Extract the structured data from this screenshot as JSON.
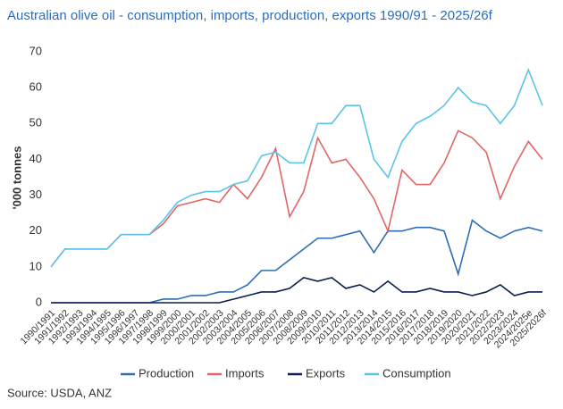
{
  "chart_data": {
    "type": "line",
    "title": "Australian olive oil - consumption, imports, production, exports 1990/91 - 2025/26f",
    "y_label": "'000 tonnes",
    "source": "Source: USDA, ANZ",
    "categories": [
      "1990/1991",
      "1991/1992",
      "1992/1993",
      "1993/1994",
      "1994/1995",
      "1995/1996",
      "1996/1997",
      "1997/1998",
      "1998/1999",
      "1999/2000",
      "2000/2001",
      "2001/2002",
      "2002/2003",
      "2003/2004",
      "2004/2005",
      "2005/2006",
      "2006/2007",
      "2007/2008",
      "2008/2009",
      "2009/2010",
      "2010/2011",
      "2011/2012",
      "2012/2013",
      "2013/2014",
      "2014/2015",
      "2015/2016",
      "2016/2017",
      "2017/2018",
      "2018/2019",
      "2019/2020",
      "2020/2021",
      "2021/2022",
      "2022/2023",
      "2023/2024",
      "2024/2025e",
      "2025/2026f"
    ],
    "series": [
      {
        "name": "Production",
        "color": "#2e6db4",
        "values": [
          0,
          0,
          0,
          0,
          0,
          0,
          0,
          0,
          1,
          1,
          2,
          2,
          3,
          3,
          5,
          9,
          9,
          12,
          15,
          18,
          18,
          19,
          20,
          14,
          20,
          20,
          21,
          21,
          20,
          8,
          23,
          20,
          18,
          20,
          21,
          20
        ]
      },
      {
        "name": "Imports",
        "color": "#e06666",
        "values": [
          10,
          15,
          15,
          15,
          15,
          19,
          19,
          19,
          22,
          27,
          28,
          29,
          28,
          33,
          29,
          35,
          43,
          24,
          31,
          46,
          39,
          40,
          35,
          29,
          20,
          37,
          33,
          33,
          39,
          48,
          46,
          42,
          29,
          38,
          45,
          40
        ]
      },
      {
        "name": "Exports",
        "color": "#0b1d51",
        "values": [
          0,
          0,
          0,
          0,
          0,
          0,
          0,
          0,
          0,
          0,
          0,
          0,
          0,
          1,
          2,
          3,
          3,
          4,
          7,
          6,
          7,
          4,
          5,
          3,
          6,
          3,
          3,
          4,
          3,
          3,
          2,
          3,
          5,
          2,
          3,
          3
        ]
      },
      {
        "name": "Consumption",
        "color": "#5bc4e6",
        "values": [
          10,
          15,
          15,
          15,
          15,
          19,
          19,
          19,
          23,
          28,
          30,
          31,
          31,
          33,
          34,
          41,
          42,
          39,
          39,
          50,
          50,
          55,
          55,
          40,
          35,
          45,
          50,
          52,
          55,
          60,
          56,
          55,
          50,
          55,
          65,
          55
        ]
      }
    ],
    "ylim": [
      0,
      70
    ],
    "yticks": [
      0,
      10,
      20,
      30,
      40,
      50,
      60,
      70
    ],
    "grid": false
  }
}
